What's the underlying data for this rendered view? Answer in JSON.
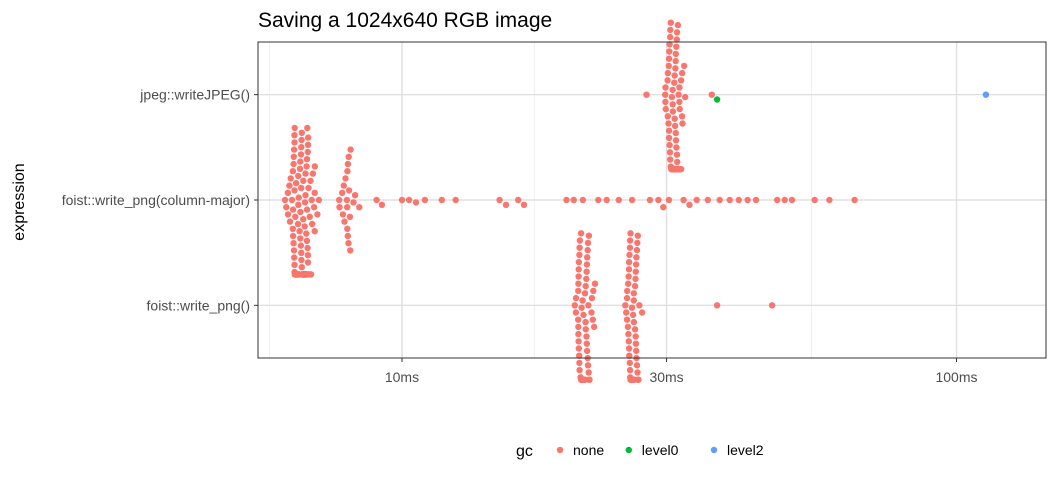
{
  "chart_data": {
    "type": "scatter",
    "subtype": "beeswarm",
    "title": "Saving a 1024x640 RGB image",
    "xlabel": "",
    "ylabel": "expression",
    "x_scale": "log10",
    "x_unit": "ms",
    "xlim": [
      5.5,
      145
    ],
    "x_ticks": [
      {
        "value": 10,
        "label": "10ms"
      },
      {
        "value": 30,
        "label": "30ms"
      },
      {
        "value": 100,
        "label": "100ms"
      }
    ],
    "categories": [
      "jpeg::writeJPEG()",
      "foist::write_png(column-major)",
      "foist::write_png()"
    ],
    "grid": true,
    "legend": {
      "title": "gc",
      "position": "bottom",
      "entries": [
        {
          "name": "none",
          "color": "#F8766D"
        },
        {
          "name": "level0",
          "color": "#00BA38"
        },
        {
          "name": "level2",
          "color": "#619CFF"
        }
      ]
    },
    "series": [
      {
        "expression": "jpeg::writeJPEG()",
        "clusters": [
          {
            "gc": "none",
            "center": 31,
            "spread": 1.5,
            "count": 95
          }
        ],
        "points": [
          {
            "gc": "none",
            "value": 27.6
          },
          {
            "gc": "none",
            "value": 36.2
          },
          {
            "gc": "level0",
            "value": 37.0
          },
          {
            "gc": "level2",
            "value": 113
          }
        ]
      },
      {
        "expression": "foist::write_png(column-major)",
        "clusters": [
          {
            "gc": "none",
            "center": 6.6,
            "spread": 0.45,
            "count": 145
          },
          {
            "gc": "none",
            "center": 8.0,
            "spread": 0.35,
            "count": 22
          }
        ],
        "points": [
          {
            "gc": "none",
            "value": 9.0
          },
          {
            "gc": "none",
            "value": 9.2
          },
          {
            "gc": "none",
            "value": 10.0
          },
          {
            "gc": "none",
            "value": 10.3
          },
          {
            "gc": "none",
            "value": 10.6
          },
          {
            "gc": "none",
            "value": 11.0
          },
          {
            "gc": "none",
            "value": 11.8
          },
          {
            "gc": "none",
            "value": 12.5
          },
          {
            "gc": "none",
            "value": 15.0
          },
          {
            "gc": "none",
            "value": 15.4
          },
          {
            "gc": "none",
            "value": 16.2
          },
          {
            "gc": "none",
            "value": 16.6
          },
          {
            "gc": "none",
            "value": 19.8
          },
          {
            "gc": "none",
            "value": 20.4
          },
          {
            "gc": "none",
            "value": 21.2
          },
          {
            "gc": "none",
            "value": 22.6
          },
          {
            "gc": "none",
            "value": 23.4
          },
          {
            "gc": "none",
            "value": 24.6
          },
          {
            "gc": "none",
            "value": 26.0
          },
          {
            "gc": "none",
            "value": 28.0
          },
          {
            "gc": "none",
            "value": 29.0
          },
          {
            "gc": "none",
            "value": 29.6
          },
          {
            "gc": "none",
            "value": 30.3
          },
          {
            "gc": "none",
            "value": 32.2
          },
          {
            "gc": "none",
            "value": 33.0
          },
          {
            "gc": "none",
            "value": 34.0
          },
          {
            "gc": "none",
            "value": 35.6
          },
          {
            "gc": "none",
            "value": 37.4
          },
          {
            "gc": "none",
            "value": 39.0
          },
          {
            "gc": "none",
            "value": 40.5
          },
          {
            "gc": "none",
            "value": 42.0
          },
          {
            "gc": "none",
            "value": 43.5
          },
          {
            "gc": "none",
            "value": 47.5
          },
          {
            "gc": "none",
            "value": 49.0
          },
          {
            "gc": "none",
            "value": 50.5
          },
          {
            "gc": "none",
            "value": 55.5
          },
          {
            "gc": "none",
            "value": 59.0
          },
          {
            "gc": "none",
            "value": 65.5
          }
        ]
      },
      {
        "expression": "foist::write_png()",
        "clusters": [
          {
            "gc": "none",
            "center": 21.3,
            "spread": 1.1,
            "count": 75
          },
          {
            "gc": "none",
            "center": 26.0,
            "spread": 1.1,
            "count": 65
          }
        ],
        "points": [
          {
            "gc": "none",
            "value": 37.0
          },
          {
            "gc": "none",
            "value": 46.5
          }
        ]
      }
    ]
  }
}
